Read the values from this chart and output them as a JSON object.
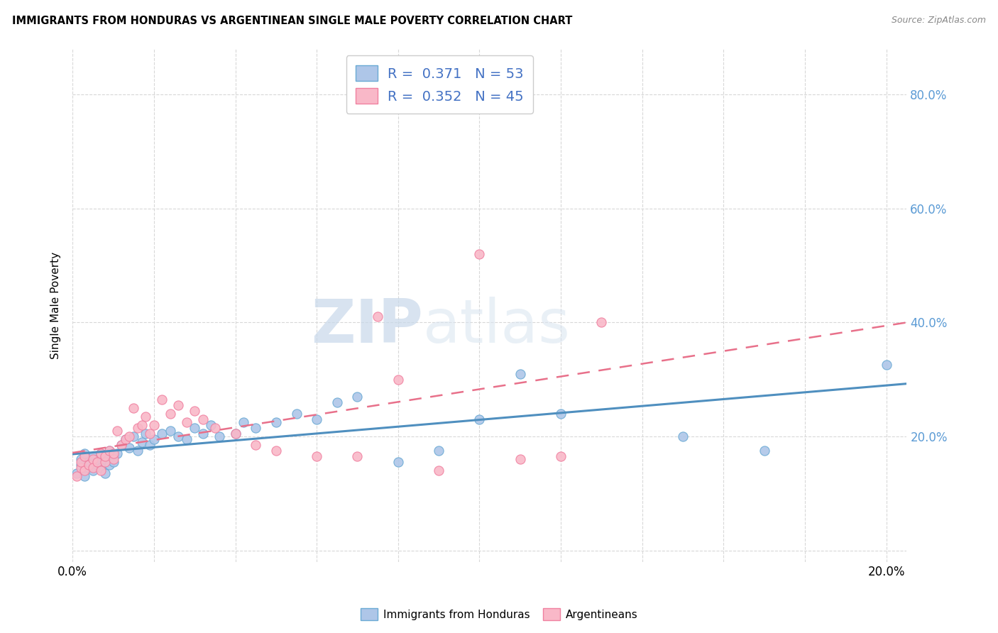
{
  "title": "IMMIGRANTS FROM HONDURAS VS ARGENTINEAN SINGLE MALE POVERTY CORRELATION CHART",
  "source": "Source: ZipAtlas.com",
  "ylabel": "Single Male Poverty",
  "legend_entries": [
    {
      "label": "Immigrants from Honduras",
      "R": "0.371",
      "N": "53",
      "color": "#aec6e8"
    },
    {
      "label": "Argentineans",
      "R": "0.352",
      "N": "45",
      "color": "#f9b8c8"
    }
  ],
  "watermark_zip": "ZIP",
  "watermark_atlas": "atlas",
  "blue_scatter_color": "#aec6e8",
  "blue_edge_color": "#6aaad4",
  "pink_scatter_color": "#f9b8c8",
  "pink_edge_color": "#f080a0",
  "blue_line_color": "#4f8fbf",
  "pink_line_color": "#e8708a",
  "honduras_x": [
    0.001,
    0.002,
    0.002,
    0.003,
    0.003,
    0.004,
    0.004,
    0.005,
    0.005,
    0.006,
    0.006,
    0.007,
    0.007,
    0.008,
    0.008,
    0.009,
    0.009,
    0.01,
    0.01,
    0.011,
    0.012,
    0.013,
    0.014,
    0.015,
    0.016,
    0.017,
    0.018,
    0.019,
    0.02,
    0.022,
    0.024,
    0.026,
    0.028,
    0.03,
    0.032,
    0.034,
    0.036,
    0.04,
    0.042,
    0.045,
    0.05,
    0.055,
    0.06,
    0.065,
    0.07,
    0.08,
    0.09,
    0.1,
    0.11,
    0.12,
    0.15,
    0.17,
    0.2
  ],
  "honduras_y": [
    0.135,
    0.15,
    0.16,
    0.13,
    0.17,
    0.145,
    0.155,
    0.14,
    0.165,
    0.15,
    0.155,
    0.145,
    0.17,
    0.135,
    0.16,
    0.175,
    0.15,
    0.165,
    0.155,
    0.17,
    0.185,
    0.195,
    0.18,
    0.2,
    0.175,
    0.19,
    0.205,
    0.185,
    0.195,
    0.205,
    0.21,
    0.2,
    0.195,
    0.215,
    0.205,
    0.22,
    0.2,
    0.205,
    0.225,
    0.215,
    0.225,
    0.24,
    0.23,
    0.26,
    0.27,
    0.155,
    0.175,
    0.23,
    0.31,
    0.24,
    0.2,
    0.175,
    0.325
  ],
  "argentina_x": [
    0.001,
    0.002,
    0.002,
    0.003,
    0.003,
    0.004,
    0.005,
    0.005,
    0.006,
    0.007,
    0.007,
    0.008,
    0.008,
    0.009,
    0.01,
    0.01,
    0.011,
    0.012,
    0.013,
    0.014,
    0.015,
    0.016,
    0.017,
    0.018,
    0.019,
    0.02,
    0.022,
    0.024,
    0.026,
    0.028,
    0.03,
    0.032,
    0.035,
    0.04,
    0.045,
    0.05,
    0.06,
    0.07,
    0.075,
    0.08,
    0.09,
    0.1,
    0.11,
    0.12,
    0.13
  ],
  "argentina_y": [
    0.13,
    0.145,
    0.155,
    0.14,
    0.165,
    0.15,
    0.16,
    0.145,
    0.155,
    0.14,
    0.17,
    0.155,
    0.165,
    0.175,
    0.16,
    0.17,
    0.21,
    0.185,
    0.195,
    0.2,
    0.25,
    0.215,
    0.22,
    0.235,
    0.205,
    0.22,
    0.265,
    0.24,
    0.255,
    0.225,
    0.245,
    0.23,
    0.215,
    0.205,
    0.185,
    0.175,
    0.165,
    0.165,
    0.41,
    0.3,
    0.14,
    0.52,
    0.16,
    0.165,
    0.4
  ],
  "xlim": [
    0.0,
    0.205
  ],
  "ylim": [
    -0.02,
    0.88
  ],
  "yticks": [
    0.0,
    0.2,
    0.4,
    0.6,
    0.8
  ],
  "xticks": [
    0.0,
    0.02,
    0.04,
    0.06,
    0.08,
    0.1,
    0.12,
    0.14,
    0.16,
    0.18,
    0.2
  ]
}
